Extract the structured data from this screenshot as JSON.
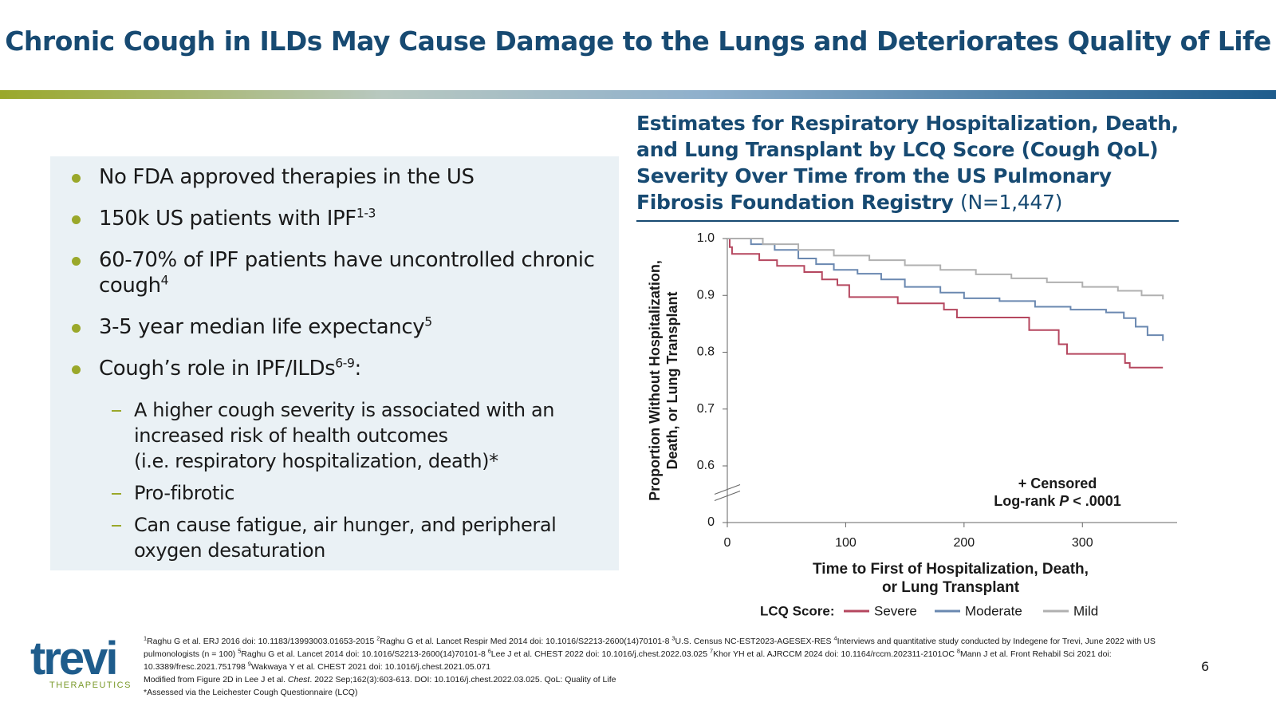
{
  "header": {
    "title": "Chronic Cough in ILDs May Cause Damage to the Lungs and Deteriorates Quality of Life"
  },
  "bullets": [
    {
      "text": "No FDA approved therapies in the US"
    },
    {
      "text": "150k US patients with IPF",
      "sup": "1-3"
    },
    {
      "text": "60-70% of IPF patients have uncontrolled chronic cough",
      "sup": 4
    },
    {
      "text": "3-5 year median life expectancy",
      "sup": 5
    },
    {
      "text": "Cough’s role in IPF/ILDs",
      "sup": "6-9",
      "after": ":"
    }
  ],
  "sub_bullets": [
    {
      "lines": [
        "A higher cough severity is associated with an increased risk of health outcomes",
        "(i.e. respiratory hospitalization, death)*"
      ]
    },
    {
      "lines": [
        "Pro-fibrotic"
      ]
    },
    {
      "lines": [
        "Can cause fatigue, air hunger, and peripheral oxygen desaturation"
      ]
    }
  ],
  "chart_data": {
    "type": "step",
    "title": "Estimates for Respiratory Hospitalization, Death, and Lung Transplant by LCQ Score (Cough QoL) Severity Over Time from the US Pulmonary Fibrosis Foundation Registry",
    "subtitle": "(N=1,447)",
    "y_label": [
      "Proportion Without Hospitalization,",
      "Death, or Lung Transplant"
    ],
    "x_label": [
      "Time to First of Hospitalization, Death,",
      "or Lung Transplant"
    ],
    "annotation": {
      "line1": "+ Censored",
      "line2": [
        "Log-rank ",
        "P",
        " < .0001"
      ]
    },
    "legend_title": "LCQ Score:",
    "xlim": [
      0,
      380
    ],
    "xticks": [
      0,
      100,
      200,
      300
    ],
    "ylim": [
      0,
      1
    ],
    "yticks": [
      0,
      0.6,
      0.7,
      0.8,
      0.9,
      {
        "value": 1,
        "label": "1.0"
      }
    ],
    "axis_break": true,
    "series": [
      {
        "name": "Severe",
        "color": "#b5475f",
        "x": [
          0,
          2,
          4,
          27,
          42,
          65,
          80,
          93,
          103,
          144,
          183,
          194,
          255,
          280,
          287,
          336,
          340,
          368
        ],
        "values": [
          1.0,
          0.985,
          0.973,
          0.962,
          0.952,
          0.941,
          0.928,
          0.918,
          0.897,
          0.886,
          0.875,
          0.861,
          0.839,
          0.814,
          0.797,
          0.781,
          0.773,
          0.773
        ]
      },
      {
        "name": "Moderate",
        "color": "#6a88b0",
        "x": [
          0,
          20,
          40,
          60,
          75,
          90,
          110,
          130,
          150,
          180,
          200,
          230,
          260,
          290,
          320,
          335,
          345,
          355,
          368
        ],
        "values": [
          1.0,
          0.99,
          0.98,
          0.965,
          0.955,
          0.945,
          0.938,
          0.928,
          0.915,
          0.905,
          0.895,
          0.89,
          0.88,
          0.875,
          0.87,
          0.86,
          0.845,
          0.83,
          0.82
        ]
      },
      {
        "name": "Mild",
        "color": "#b0b0b0",
        "x": [
          0,
          30,
          60,
          90,
          120,
          150,
          180,
          210,
          240,
          270,
          300,
          330,
          350,
          368
        ],
        "values": [
          1.0,
          0.99,
          0.98,
          0.97,
          0.962,
          0.953,
          0.945,
          0.937,
          0.93,
          0.923,
          0.915,
          0.908,
          0.9,
          0.893
        ]
      }
    ]
  },
  "footnotes": {
    "refs": [
      {
        "n": 1,
        "text": "Raghu G et al. ERJ 2016 doi: 10.1183/13993003.01653-2015 "
      },
      {
        "n": 2,
        "text": "Raghu G et al. Lancet Respir Med 2014 doi: 10.1016/S2213-2600(14)70101-8 "
      },
      {
        "n": 3,
        "text": "U.S. Census NC-EST2023-AGESEX-RES "
      },
      {
        "n": 4,
        "text": "Interviews and quantitative study conducted by Indegene for Trevi, June 2022 with US pulmonologists (n = 100) "
      },
      {
        "n": 5,
        "text": "Raghu G et al. Lancet 2014 doi: 10.1016/S2213-2600(14)70101-8 "
      },
      {
        "n": 6,
        "text": "Lee J et al. CHEST 2022 doi: 10.1016/j.chest.2022.03.025 "
      },
      {
        "n": 7,
        "text": "Khor YH et al. AJRCCM 2024 doi: 10.1164/rccm.202311-2101OC "
      },
      {
        "n": 8,
        "text": "Mann J et al. Front Rehabil Sci 2021 doi: 10.3389/fresc.2021.751798 "
      },
      {
        "n": 9,
        "text": "Wakwaya Y et al. CHEST 2021 doi: 10.1016/j.chest.2021.05.071"
      }
    ],
    "modified": [
      "Modified from Figure 2D in Lee J et al. ",
      "Chest",
      ". 2022 Sep;162(3):603-613. DOI: 10.1016/j.chest.2022.03.025. QoL: Quality of Life"
    ],
    "assessed": "*Assessed via the Leichester Cough Questionnaire (LCQ)"
  },
  "logo": {
    "name": "trevi",
    "tagline": "THERAPEUTICS"
  },
  "page_number": 6
}
